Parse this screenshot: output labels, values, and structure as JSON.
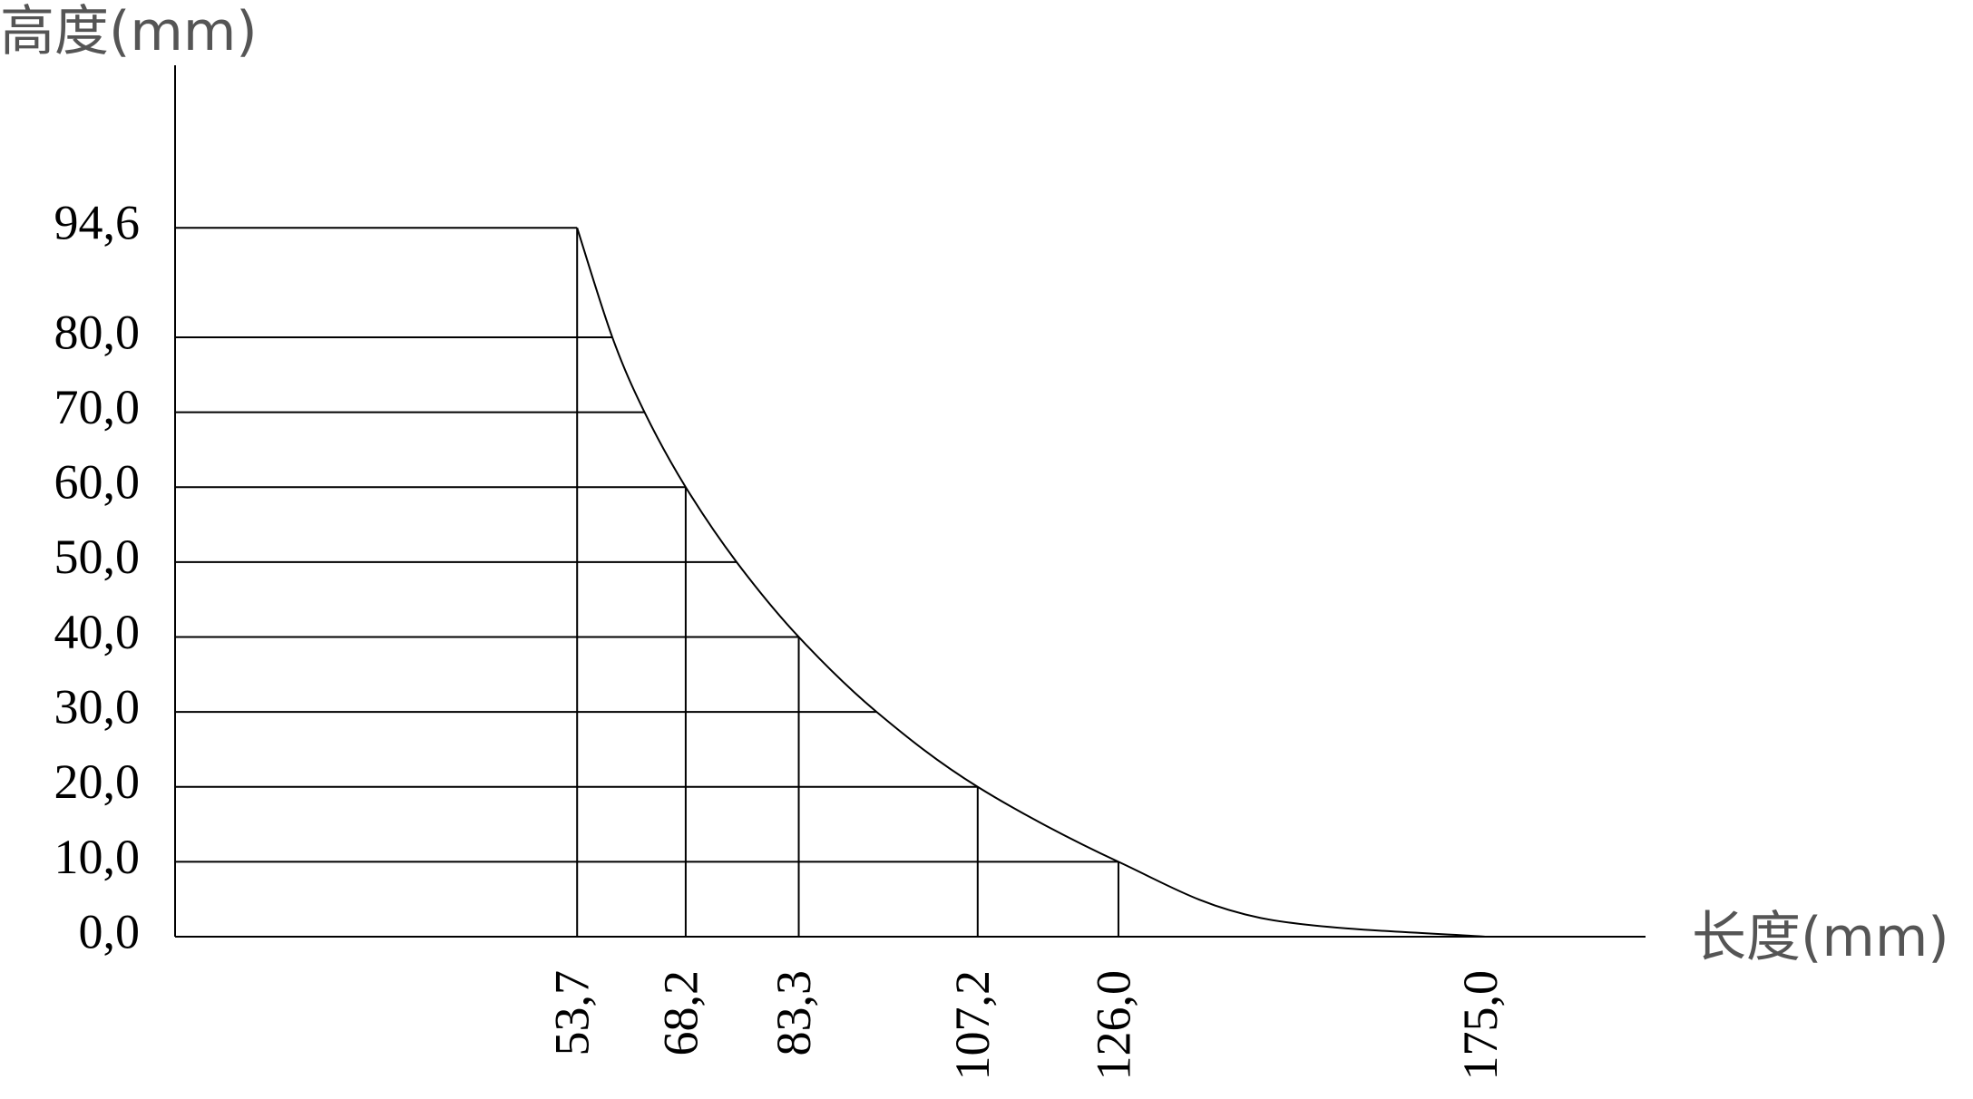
{
  "chart_data": {
    "type": "line",
    "y_label": "高度(mm)",
    "x_label": "长度(mm)",
    "x": [
      53.7,
      58.4,
      62.7,
      68.2,
      75.0,
      83.3,
      93.7,
      107.2,
      126.0,
      145.0,
      175.0
    ],
    "series": [
      {
        "color": "#000000",
        "values": [
          94.6,
          80,
          70,
          60,
          50,
          40,
          30,
          20,
          10,
          2.5,
          0
        ]
      }
    ],
    "xlim": [
      0,
      196.4
    ],
    "ylim": [
      0,
      116.3
    ],
    "xticks": [
      {
        "value": 53.7,
        "label": "53,7"
      },
      {
        "value": 68.2,
        "label": "68,2"
      },
      {
        "value": 83.3,
        "label": "83,3"
      },
      {
        "value": 107.2,
        "label": "107,2"
      },
      {
        "value": 126.0,
        "label": "126,0"
      },
      {
        "value": 175.0,
        "label": "175,0"
      }
    ],
    "yticks": [
      {
        "value": 0,
        "label": "0,0"
      },
      {
        "value": 10,
        "label": "10,0"
      },
      {
        "value": 20,
        "label": "20,0"
      },
      {
        "value": 30,
        "label": "30,0"
      },
      {
        "value": 40,
        "label": "40,0"
      },
      {
        "value": 50,
        "label": "50,0"
      },
      {
        "value": 60,
        "label": "60,0"
      },
      {
        "value": 70,
        "label": "70,0"
      },
      {
        "value": 80,
        "label": "80,0"
      },
      {
        "value": 94.6,
        "label": "94,6"
      }
    ],
    "grid": true
  }
}
